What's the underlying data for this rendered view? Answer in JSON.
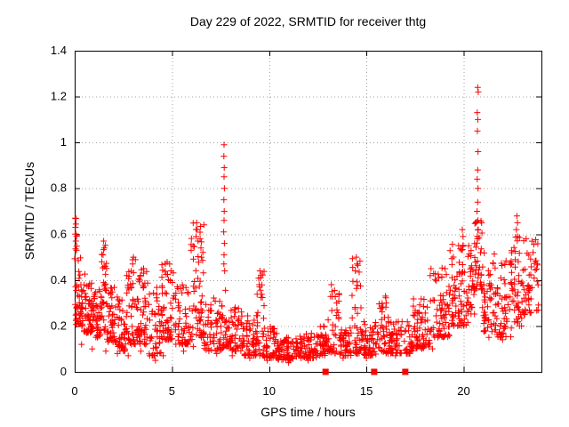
{
  "chart_data": {
    "type": "scatter",
    "title": "Day 229 of 2022, SRMTID for receiver thtg",
    "xlabel": "GPS time / hours",
    "ylabel": "SRMTID / TECUs",
    "xlim": [
      0,
      24
    ],
    "ylim": [
      0,
      1.4
    ],
    "x_ticks": [
      {
        "v": 0,
        "label": "0"
      },
      {
        "v": 5,
        "label": "5"
      },
      {
        "v": 10,
        "label": "10"
      },
      {
        "v": 15,
        "label": "15"
      },
      {
        "v": 20,
        "label": "20"
      }
    ],
    "y_ticks": [
      {
        "v": 0,
        "label": "0"
      },
      {
        "v": 0.2,
        "label": "0.2"
      },
      {
        "v": 0.4,
        "label": "0.4"
      },
      {
        "v": 0.6,
        "label": "0.6"
      },
      {
        "v": 0.8,
        "label": "0.8"
      },
      {
        "v": 1,
        "label": "1"
      },
      {
        "v": 1.2,
        "label": "1.2"
      },
      {
        "v": 1.4,
        "label": "1.4"
      }
    ],
    "grid": "dotted",
    "legend": "none",
    "marker": "plus",
    "colors": {
      "points": "#ff0000",
      "grid": "#a0a0a0",
      "axis": "#000000",
      "text": "#000000",
      "background": "#ffffff"
    },
    "baseline_squares_x": [
      12.9,
      15.4,
      17.0
    ],
    "peak_points": [
      [
        0.02,
        0.67
      ],
      [
        0.04,
        0.63
      ],
      [
        0.03,
        0.6
      ],
      [
        0.06,
        0.57
      ],
      [
        1.49,
        0.57
      ],
      [
        1.52,
        0.54
      ],
      [
        1.46,
        0.51
      ],
      [
        3.02,
        0.5
      ],
      [
        2.98,
        0.47
      ],
      [
        4.88,
        0.47
      ],
      [
        4.95,
        0.44
      ],
      [
        6.27,
        0.65
      ],
      [
        6.3,
        0.62
      ],
      [
        6.24,
        0.59
      ],
      [
        6.34,
        0.57
      ],
      [
        6.45,
        0.58
      ],
      [
        6.49,
        0.54
      ],
      [
        6.52,
        0.5
      ],
      [
        7.68,
        0.99
      ],
      [
        7.67,
        0.94
      ],
      [
        7.69,
        0.89
      ],
      [
        7.68,
        0.85
      ],
      [
        7.7,
        0.8
      ],
      [
        7.67,
        0.75
      ],
      [
        7.69,
        0.7
      ],
      [
        7.68,
        0.66
      ],
      [
        7.66,
        0.61
      ],
      [
        7.7,
        0.56
      ],
      [
        7.68,
        0.51
      ],
      [
        7.67,
        0.47
      ],
      [
        7.71,
        0.44
      ],
      [
        9.52,
        0.44
      ],
      [
        9.56,
        0.41
      ],
      [
        9.49,
        0.38
      ],
      [
        13.2,
        0.38
      ],
      [
        13.24,
        0.35
      ],
      [
        13.47,
        0.3
      ],
      [
        14.48,
        0.5
      ],
      [
        14.52,
        0.47
      ],
      [
        14.43,
        0.44
      ],
      [
        15.98,
        0.33
      ],
      [
        16.02,
        0.3
      ],
      [
        18.32,
        0.45
      ],
      [
        18.28,
        0.42
      ],
      [
        19.93,
        0.62
      ],
      [
        19.97,
        0.59
      ],
      [
        20.72,
        1.24
      ],
      [
        20.75,
        1.22
      ],
      [
        20.7,
        1.13
      ],
      [
        20.73,
        1.1
      ],
      [
        20.71,
        1.05
      ],
      [
        20.74,
        0.96
      ],
      [
        20.72,
        0.88
      ],
      [
        20.7,
        0.84
      ],
      [
        20.74,
        0.8
      ],
      [
        20.72,
        0.74
      ],
      [
        20.69,
        0.7
      ],
      [
        20.73,
        0.66
      ],
      [
        20.75,
        0.62
      ],
      [
        20.71,
        0.58
      ],
      [
        22.74,
        0.68
      ],
      [
        22.77,
        0.65
      ],
      [
        22.71,
        0.62
      ],
      [
        22.78,
        0.59
      ],
      [
        0.35,
        0.12
      ],
      [
        0.9,
        0.1
      ],
      [
        1.6,
        0.09
      ],
      [
        2.2,
        0.08
      ],
      [
        2.75,
        0.07
      ],
      [
        3.4,
        0.09
      ],
      [
        4.15,
        0.05
      ],
      [
        4.55,
        0.07
      ],
      [
        5.6,
        0.09
      ],
      [
        6.1,
        0.11
      ],
      [
        7.3,
        0.08
      ],
      [
        8.1,
        0.07
      ],
      [
        9.0,
        0.06
      ],
      [
        9.9,
        0.05
      ],
      [
        11.0,
        0.04
      ],
      [
        12.0,
        0.05
      ],
      [
        13.8,
        0.06
      ],
      [
        15.0,
        0.06
      ],
      [
        16.5,
        0.07
      ],
      [
        21.3,
        0.15
      ],
      [
        22.0,
        0.14
      ]
    ],
    "scatter_bands_format": "[x_start, x_end, count, y_min, y_max, bias_exponent]",
    "scatter_bands": [
      [
        0.0,
        0.12,
        16,
        0.22,
        0.67,
        1.0
      ],
      [
        0.05,
        0.45,
        40,
        0.2,
        0.52,
        1.8
      ],
      [
        0.45,
        0.95,
        50,
        0.17,
        0.44,
        1.8
      ],
      [
        0.95,
        1.35,
        40,
        0.15,
        0.36,
        1.8
      ],
      [
        1.35,
        1.65,
        30,
        0.18,
        0.57,
        1.3
      ],
      [
        1.65,
        2.15,
        45,
        0.13,
        0.38,
        1.8
      ],
      [
        2.15,
        2.65,
        45,
        0.09,
        0.33,
        1.8
      ],
      [
        2.65,
        3.2,
        50,
        0.12,
        0.5,
        1.7
      ],
      [
        3.2,
        3.8,
        55,
        0.12,
        0.46,
        1.8
      ],
      [
        3.8,
        4.45,
        50,
        0.07,
        0.4,
        1.8
      ],
      [
        4.45,
        5.15,
        60,
        0.14,
        0.48,
        1.7
      ],
      [
        5.15,
        5.95,
        60,
        0.12,
        0.38,
        1.8
      ],
      [
        5.95,
        6.65,
        60,
        0.14,
        0.66,
        1.9
      ],
      [
        6.65,
        7.55,
        60,
        0.09,
        0.33,
        1.8
      ],
      [
        7.55,
        7.9,
        25,
        0.1,
        0.38,
        1.5
      ],
      [
        7.9,
        8.7,
        55,
        0.09,
        0.3,
        1.8
      ],
      [
        8.7,
        9.35,
        50,
        0.07,
        0.26,
        1.8
      ],
      [
        9.35,
        9.75,
        35,
        0.07,
        0.44,
        1.9
      ],
      [
        9.75,
        10.45,
        50,
        0.06,
        0.2,
        1.8
      ],
      [
        10.45,
        11.45,
        70,
        0.05,
        0.15,
        1.6
      ],
      [
        11.45,
        12.45,
        70,
        0.06,
        0.17,
        1.6
      ],
      [
        12.45,
        12.95,
        40,
        0.07,
        0.2,
        1.6
      ],
      [
        12.95,
        13.6,
        40,
        0.08,
        0.38,
        1.9
      ],
      [
        13.6,
        14.25,
        50,
        0.07,
        0.2,
        1.7
      ],
      [
        14.25,
        14.75,
        40,
        0.08,
        0.5,
        1.9
      ],
      [
        14.75,
        15.55,
        55,
        0.07,
        0.22,
        1.7
      ],
      [
        15.55,
        16.2,
        45,
        0.08,
        0.34,
        1.8
      ],
      [
        16.2,
        17.4,
        80,
        0.08,
        0.22,
        1.7
      ],
      [
        17.4,
        18.4,
        70,
        0.1,
        0.32,
        1.7
      ],
      [
        18.4,
        19.3,
        70,
        0.15,
        0.46,
        1.6
      ],
      [
        19.3,
        20.25,
        80,
        0.2,
        0.56,
        1.6
      ],
      [
        20.25,
        20.6,
        30,
        0.25,
        0.55,
        1.4
      ],
      [
        20.55,
        20.95,
        35,
        0.35,
        0.68,
        1.3
      ],
      [
        20.95,
        21.65,
        55,
        0.17,
        0.52,
        1.6
      ],
      [
        21.65,
        22.45,
        55,
        0.15,
        0.5,
        1.6
      ],
      [
        22.45,
        23.05,
        50,
        0.2,
        0.6,
        1.6
      ],
      [
        23.05,
        23.9,
        55,
        0.25,
        0.58,
        1.5
      ]
    ]
  }
}
